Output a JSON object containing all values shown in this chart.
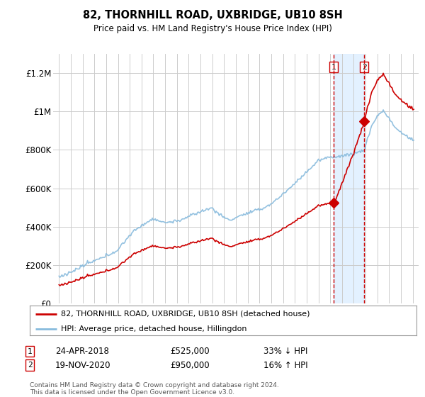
{
  "title": "82, THORNHILL ROAD, UXBRIDGE, UB10 8SH",
  "subtitle": "Price paid vs. HM Land Registry's House Price Index (HPI)",
  "yticks_labels": [
    "£0",
    "£200K",
    "£400K",
    "£600K",
    "£800K",
    "£1M",
    "£1.2M"
  ],
  "yticks_values": [
    0,
    200000,
    400000,
    600000,
    800000,
    1000000,
    1200000
  ],
  "ylim": [
    0,
    1300000
  ],
  "xlim_start": 1994.5,
  "xlim_end": 2025.5,
  "transaction1_x": 2018.31,
  "transaction1_price": 525000,
  "transaction1_label": "1",
  "transaction2_x": 2020.88,
  "transaction2_price": 950000,
  "transaction2_label": "2",
  "shade_color": "#ddeeff",
  "vline_color": "#cc0000",
  "hpi_color": "#88bbdd",
  "price_color": "#cc0000",
  "legend_label_price": "82, THORNHILL ROAD, UXBRIDGE, UB10 8SH (detached house)",
  "legend_label_hpi": "HPI: Average price, detached house, Hillingdon",
  "note1_date": "24-APR-2018",
  "note1_price": "£525,000",
  "note1_pct": "33% ↓ HPI",
  "note2_date": "19-NOV-2020",
  "note2_price": "£950,000",
  "note2_pct": "16% ↑ HPI",
  "footnote": "Contains HM Land Registry data © Crown copyright and database right 2024.\nThis data is licensed under the Open Government Licence v3.0.",
  "background_color": "#ffffff",
  "grid_color": "#cccccc"
}
